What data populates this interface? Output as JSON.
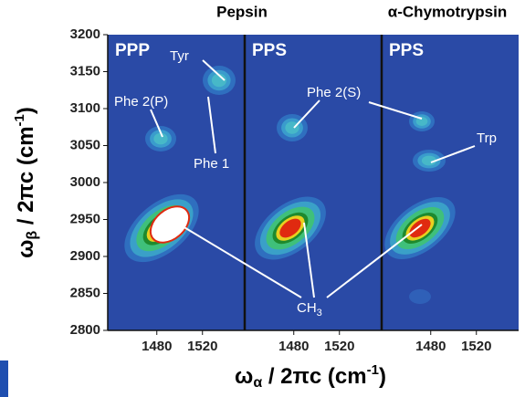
{
  "chart_data": {
    "type": "heatmap",
    "titles": [
      "Pepsin",
      "α-Chymotrypsin"
    ],
    "panels": [
      "PPP",
      "PPS",
      "PPS"
    ],
    "xlim": [
      1437,
      1557
    ],
    "xticks": [
      1480,
      1520
    ],
    "ylim": [
      2800,
      3200
    ],
    "yticks": [
      2800,
      2850,
      2900,
      2950,
      3000,
      3050,
      3100,
      3150,
      3200
    ],
    "xlabel": {
      "symbol": "ω",
      "subscript": "α",
      "text": " / 2πc (cm",
      "superscript": "-1",
      "end": ")"
    },
    "ylabel": {
      "symbol": "ω",
      "subscript": "β",
      "text": " / 2πc (cm",
      "superscript": "-1",
      "end": ")"
    },
    "annotations": {
      "tyr": "Tyr",
      "phe2p": "Phe 2(P)",
      "phe1": "Phe 1",
      "phe2s": "Phe 2(S)",
      "trp": "Trp",
      "ch": "CH",
      "ch_sub": "3"
    }
  }
}
